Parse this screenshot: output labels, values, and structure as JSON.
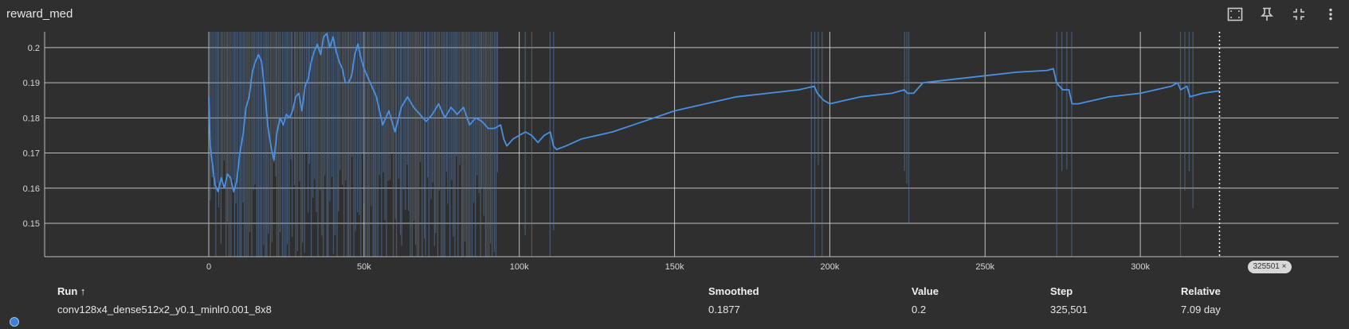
{
  "card": {
    "title": "reward_med",
    "toolbar": [
      {
        "name": "fit-domain-icon"
      },
      {
        "name": "pin-icon"
      },
      {
        "name": "collapse-icon"
      },
      {
        "name": "more-vert-icon"
      }
    ]
  },
  "chart_data": {
    "type": "line",
    "title": "reward_med",
    "xlabel": "",
    "ylabel": "",
    "xlim": [
      0,
      340000
    ],
    "ylim": [
      0.1405,
      0.2045
    ],
    "x_ticks": [
      0,
      50000,
      100000,
      150000,
      200000,
      250000,
      300000
    ],
    "x_tick_labels": [
      "0",
      "50k",
      "100k",
      "150k",
      "200k",
      "250k",
      "300k"
    ],
    "y_ticks": [
      0.15,
      0.16,
      0.17,
      0.18,
      0.19,
      0.2
    ],
    "y_tick_labels": [
      "0.15",
      "0.16",
      "0.17",
      "0.18",
      "0.19",
      "0.2"
    ],
    "grid": true,
    "hover_step": 325501,
    "colors": {
      "smoothed": "#4a90e2",
      "raw": "#5b7da8",
      "grid": "#d9d9d9",
      "background": "#2f2f2f"
    },
    "series": [
      {
        "name": "conv128x4_dense512x2_y0.1_minlr0.001_8x8",
        "x": [
          0,
          500,
          1000,
          2000,
          3000,
          4000,
          5000,
          6000,
          7000,
          8000,
          9000,
          10000,
          11000,
          12000,
          13000,
          14000,
          15000,
          16000,
          17000,
          18000,
          19000,
          20000,
          21000,
          22000,
          23000,
          24000,
          25000,
          26000,
          27000,
          28000,
          29000,
          30000,
          31000,
          32000,
          33000,
          34000,
          35000,
          36000,
          37000,
          38000,
          39000,
          40000,
          41000,
          42000,
          43000,
          44000,
          45000,
          46000,
          47000,
          48000,
          49000,
          50000,
          52000,
          54000,
          56000,
          58000,
          60000,
          62000,
          64000,
          66000,
          68000,
          70000,
          72000,
          74000,
          76000,
          78000,
          80000,
          82000,
          84000,
          86000,
          88000,
          90000,
          92000,
          94000,
          95000,
          96000,
          98000,
          100000,
          102000,
          104000,
          106000,
          108000,
          110000,
          111000,
          112000,
          115000,
          120000,
          130000,
          140000,
          150000,
          160000,
          170000,
          180000,
          190000,
          195000,
          196000,
          198000,
          200000,
          210000,
          220000,
          224000,
          225000,
          227000,
          230000,
          240000,
          250000,
          260000,
          270000,
          272000,
          273000,
          275000,
          277000,
          278000,
          280000,
          290000,
          300000,
          310000,
          312000,
          313000,
          315000,
          316000,
          318000,
          320000,
          325501
        ],
        "values": [
          0.186,
          0.172,
          0.168,
          0.161,
          0.159,
          0.163,
          0.16,
          0.164,
          0.163,
          0.159,
          0.162,
          0.17,
          0.175,
          0.183,
          0.186,
          0.193,
          0.196,
          0.198,
          0.196,
          0.188,
          0.178,
          0.172,
          0.168,
          0.176,
          0.18,
          0.178,
          0.181,
          0.18,
          0.182,
          0.186,
          0.187,
          0.182,
          0.189,
          0.191,
          0.196,
          0.199,
          0.201,
          0.198,
          0.203,
          0.204,
          0.2,
          0.203,
          0.199,
          0.196,
          0.194,
          0.19,
          0.19,
          0.192,
          0.198,
          0.201,
          0.197,
          0.194,
          0.19,
          0.186,
          0.178,
          0.182,
          0.176,
          0.183,
          0.186,
          0.183,
          0.181,
          0.179,
          0.181,
          0.184,
          0.18,
          0.183,
          0.181,
          0.183,
          0.178,
          0.18,
          0.179,
          0.177,
          0.177,
          0.178,
          0.174,
          0.172,
          0.174,
          0.175,
          0.176,
          0.175,
          0.173,
          0.175,
          0.176,
          0.172,
          0.171,
          0.172,
          0.174,
          0.176,
          0.179,
          0.182,
          0.184,
          0.186,
          0.187,
          0.188,
          0.189,
          0.187,
          0.185,
          0.184,
          0.186,
          0.187,
          0.188,
          0.187,
          0.187,
          0.19,
          0.191,
          0.192,
          0.193,
          0.1935,
          0.194,
          0.19,
          0.188,
          0.188,
          0.184,
          0.184,
          0.186,
          0.187,
          0.189,
          0.19,
          0.188,
          0.189,
          0.186,
          0.1865,
          0.187,
          0.1877
        ]
      }
    ],
    "raw_clusters": [
      {
        "x0": 0,
        "x1": 93000,
        "n": 170
      },
      {
        "x0": 102000,
        "x1": 104000,
        "n": 2
      },
      {
        "x0": 110000,
        "x1": 111000,
        "n": 2
      },
      {
        "x0": 194000,
        "x1": 197500,
        "n": 4
      },
      {
        "x0": 224000,
        "x1": 225500,
        "n": 3
      },
      {
        "x0": 273000,
        "x1": 278000,
        "n": 4
      },
      {
        "x0": 313000,
        "x1": 317000,
        "n": 4
      }
    ]
  },
  "hover_badge": {
    "label": "325501 ×"
  },
  "table": {
    "headers": {
      "run": "Run ↑",
      "smoothed": "Smoothed",
      "value": "Value",
      "step": "Step",
      "relative": "Relative"
    },
    "rows": [
      {
        "run": "conv128x4_dense512x2_y0.1_minlr0.001_8x8",
        "smoothed": "0.1877",
        "value": "0.2",
        "step": "325,501",
        "relative": "7.09 day",
        "color": "#3d7fd6"
      }
    ]
  }
}
